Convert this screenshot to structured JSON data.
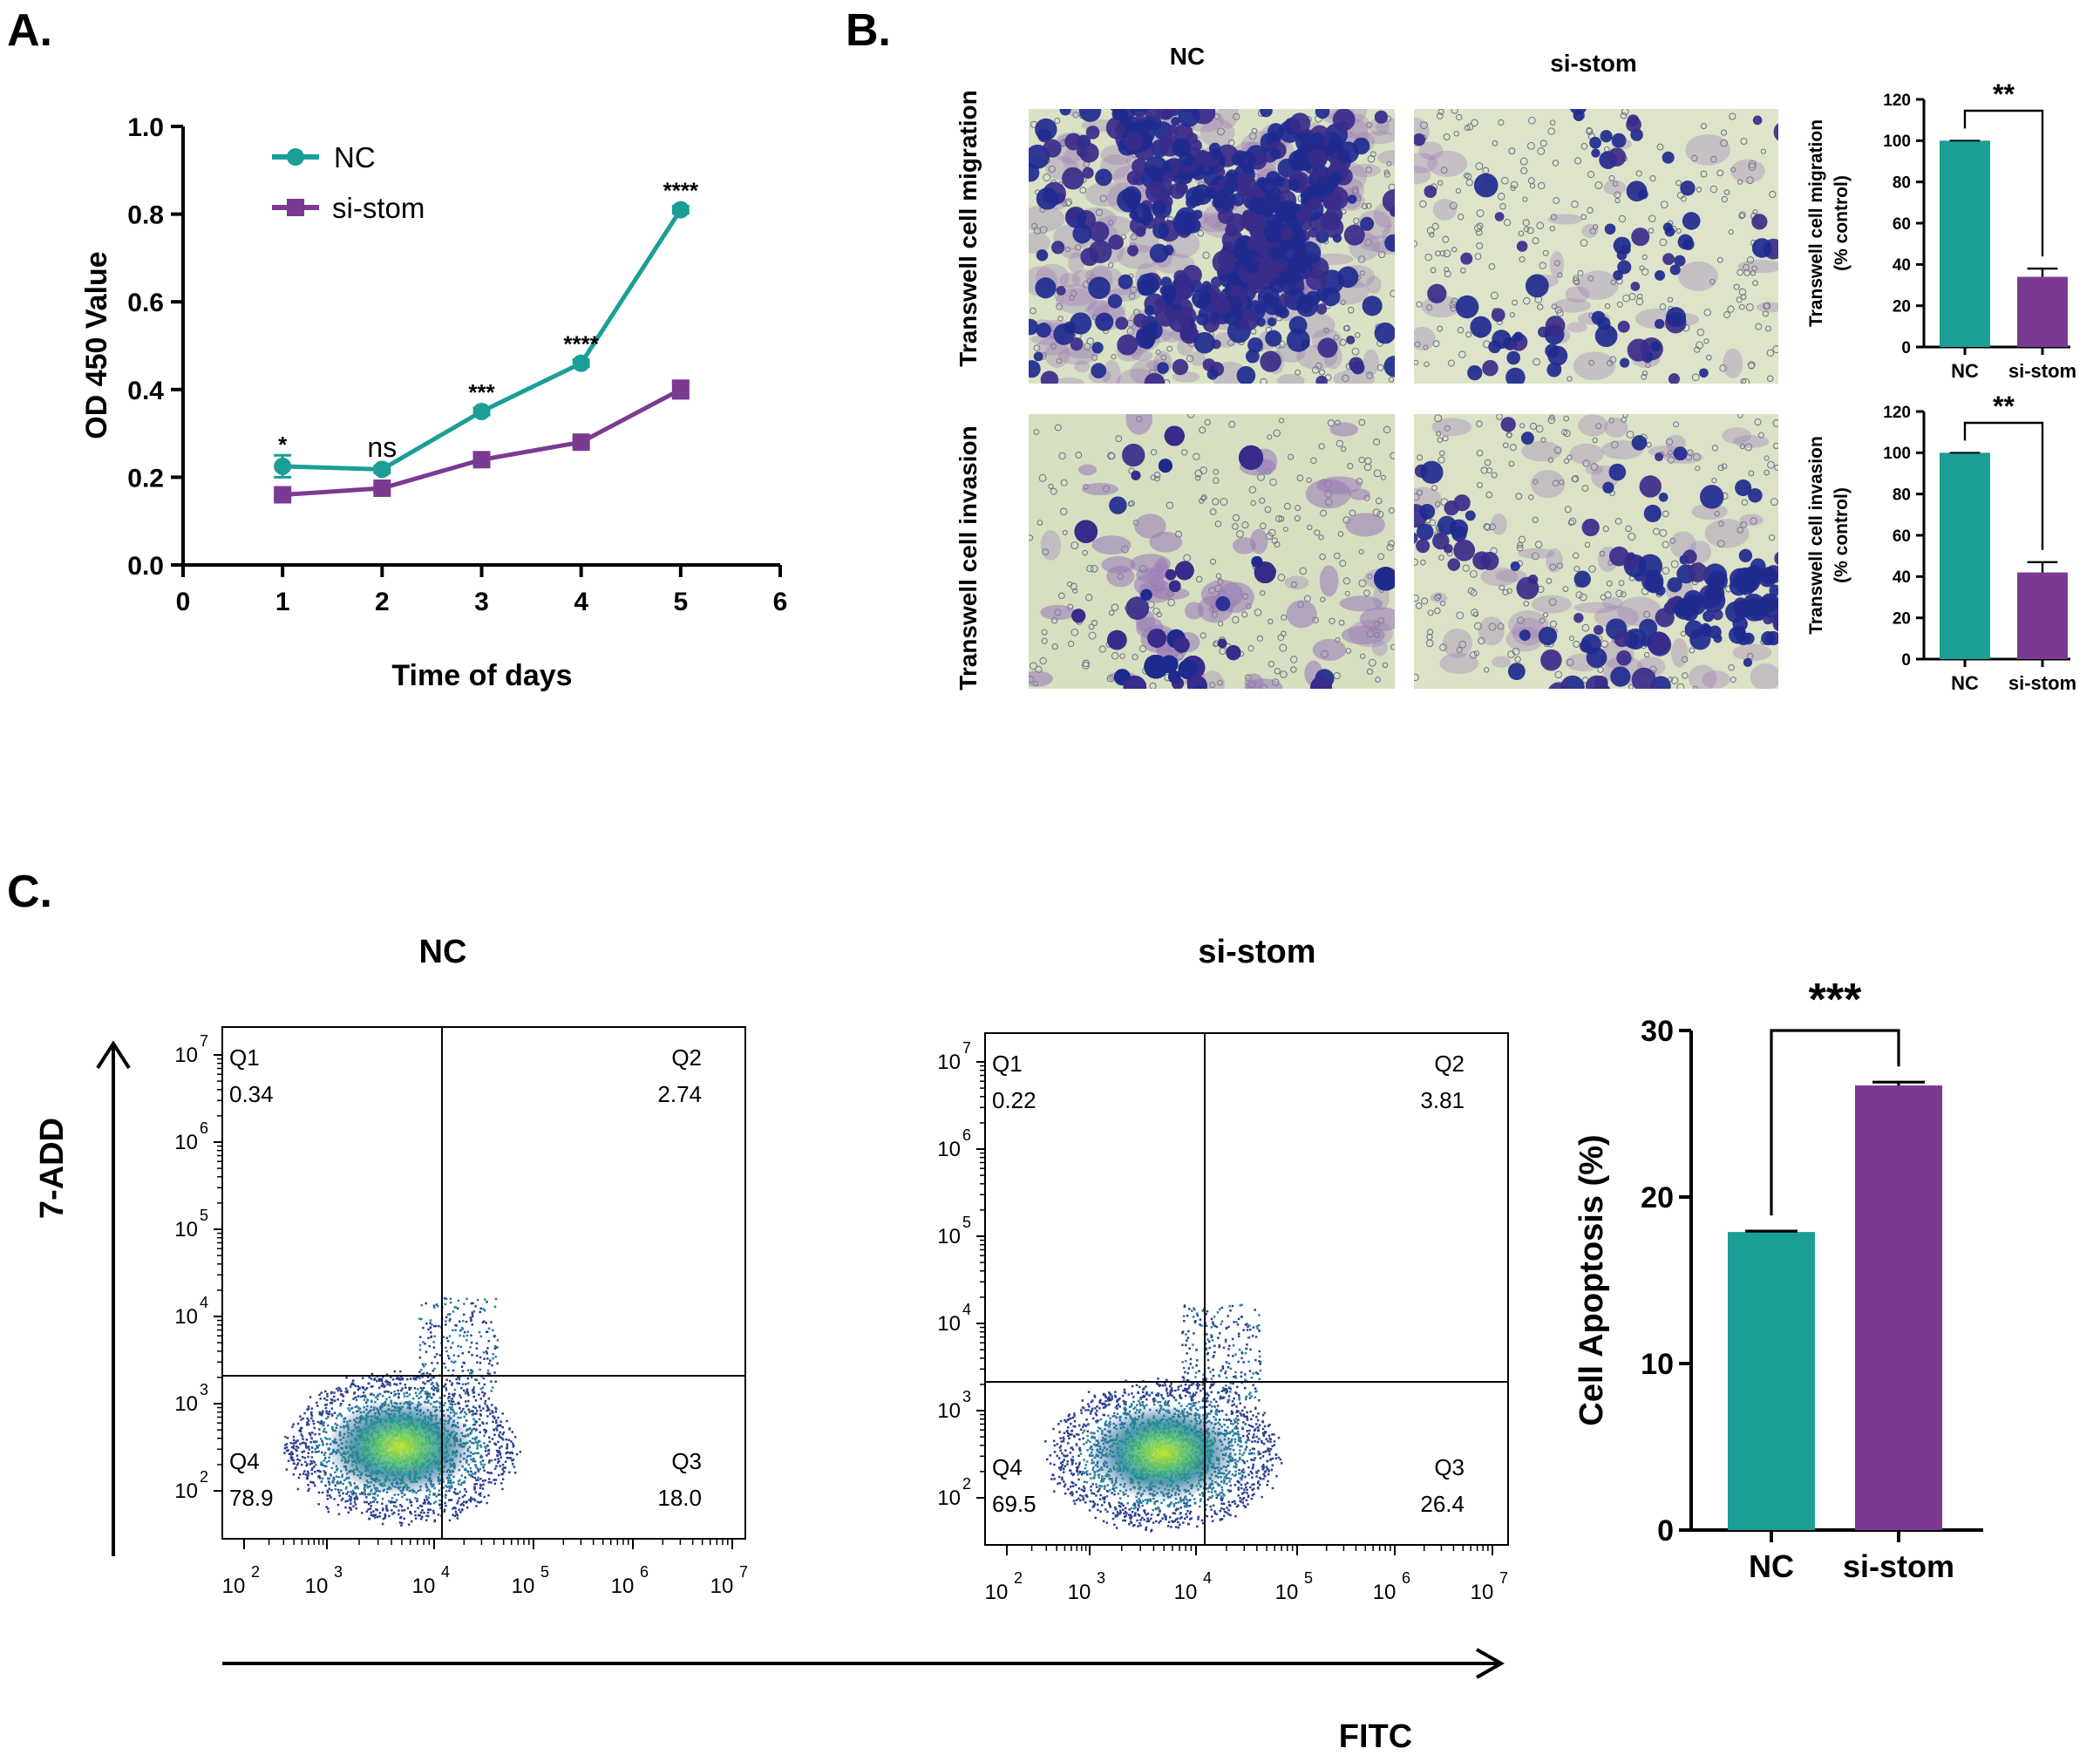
{
  "colors": {
    "nc": "#1a9e96",
    "si": "#7b3a91",
    "axis": "#000000"
  },
  "panel_labels": {
    "a": "A.",
    "b": "B.",
    "c": "C."
  },
  "chart_data": [
    {
      "id": "growth",
      "type": "line",
      "title": "",
      "xlabel": "Time of days",
      "ylabel": "OD 450  Value",
      "xlim": [
        0,
        6
      ],
      "ylim": [
        0,
        1.0
      ],
      "xticks": [
        "0",
        "1",
        "2",
        "3",
        "4",
        "5",
        "6"
      ],
      "yticks": [
        "0.0",
        "0.2",
        "0.4",
        "0.6",
        "0.8",
        "1.0"
      ],
      "legend": "top-left",
      "series": [
        {
          "name": "NC",
          "x": [
            1,
            2,
            3,
            4,
            5
          ],
          "y": [
            0.225,
            0.218,
            0.35,
            0.46,
            0.81
          ],
          "err": [
            0.025,
            0.008,
            0.008,
            0.008,
            0.008
          ]
        },
        {
          "name": "si-stom",
          "x": [
            1,
            2,
            3,
            4,
            5
          ],
          "y": [
            0.16,
            0.175,
            0.24,
            0.28,
            0.4
          ],
          "err": [
            0.008,
            0.008,
            0.008,
            0.008,
            0.02
          ]
        }
      ],
      "annotations": [
        {
          "x": 1,
          "y": 0.28,
          "text": "*"
        },
        {
          "x": 2,
          "y": 0.27,
          "text": "ns"
        },
        {
          "x": 3,
          "y": 0.4,
          "text": "***"
        },
        {
          "x": 4,
          "y": 0.51,
          "text": "****"
        },
        {
          "x": 5,
          "y": 0.86,
          "text": "****"
        }
      ]
    },
    {
      "id": "migration",
      "type": "bar",
      "categories": [
        "NC",
        "si-stom"
      ],
      "values": [
        100,
        34
      ],
      "errors": [
        0,
        4
      ],
      "ylabel_lines": [
        "Transwell cell migration",
        "(% control)"
      ],
      "ylim": [
        0,
        120
      ],
      "yticks": [
        "0",
        "20",
        "40",
        "60",
        "80",
        "100",
        "120"
      ],
      "significance": "**"
    },
    {
      "id": "invasion",
      "type": "bar",
      "categories": [
        "NC",
        "si-stom"
      ],
      "values": [
        100,
        42
      ],
      "errors": [
        0,
        5
      ],
      "ylabel_lines": [
        "Transwell cell invasion",
        "(% control)"
      ],
      "ylim": [
        0,
        120
      ],
      "yticks": [
        "0",
        "20",
        "40",
        "60",
        "80",
        "100",
        "120"
      ],
      "significance": "**"
    },
    {
      "id": "apoptosis",
      "type": "bar",
      "categories": [
        "NC",
        "si-stom"
      ],
      "values": [
        17.9,
        26.7
      ],
      "errors": [
        0.05,
        0.2
      ],
      "ylabel": "Cell Apoptosis (%)",
      "ylim": [
        0,
        30
      ],
      "yticks": [
        "0",
        "10",
        "20",
        "30"
      ],
      "significance": "***"
    }
  ],
  "transwell": {
    "col_labels": [
      "NC",
      "si-stom"
    ],
    "row_labels": [
      "Transwell cell migration",
      "Transwell cell invasion"
    ]
  },
  "flow": {
    "group_labels": [
      "NC",
      "si-stom"
    ],
    "y_axis_label": "7-ADD",
    "x_axis_label": "FITC",
    "tick_exponents": [
      "2",
      "3",
      "4",
      "5",
      "6",
      "7"
    ],
    "plots": [
      {
        "q1": "Q1",
        "q1v": "0.34",
        "q2": "Q2",
        "q2v": "2.74",
        "q3": "Q3",
        "q3v": "18.0",
        "q4": "Q4",
        "q4v": "78.9"
      },
      {
        "q1": "Q1",
        "q1v": "0.22",
        "q2": "Q2",
        "q2v": "3.81",
        "q3": "Q3",
        "q3v": "26.4",
        "q4": "Q4",
        "q4v": "69.5"
      }
    ]
  }
}
